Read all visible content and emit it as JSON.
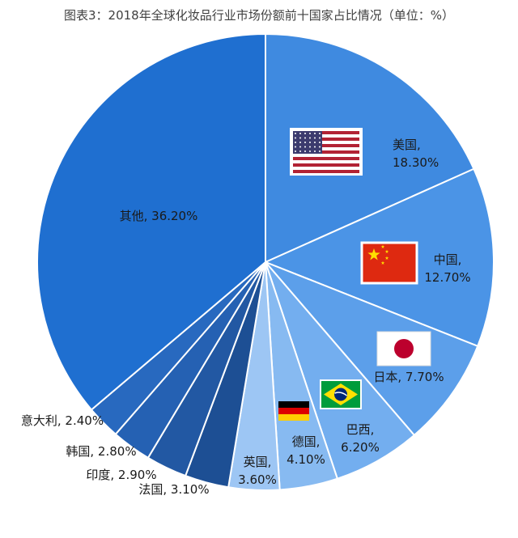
{
  "chart_data": {
    "type": "pie",
    "title": "图表3：2018年全球化妆品行业市场份额前十国家占比情况（单位：%）",
    "unit": "%",
    "start": "12 o'clock",
    "direction": "clockwise",
    "slices": [
      {
        "name": "美国",
        "value": 18.3,
        "value_label": "18.30%",
        "color": "#3f8ae0",
        "flag": "us-flag-icon"
      },
      {
        "name": "中国",
        "value": 12.7,
        "value_label": "12.70%",
        "color": "#4b94e6",
        "flag": "china-flag-icon"
      },
      {
        "name": "日本",
        "value": 7.7,
        "value_label": "7.70%",
        "color": "#5c9fea",
        "flag": "japan-flag-icon"
      },
      {
        "name": "巴西",
        "value": 6.2,
        "value_label": "6.20%",
        "color": "#73aeef",
        "flag": "brazil-flag-icon"
      },
      {
        "name": "德国",
        "value": 4.1,
        "value_label": "4.10%",
        "color": "#87baf1",
        "flag": "germany-flag-icon"
      },
      {
        "name": "英国",
        "value": 3.6,
        "value_label": "3.60%",
        "color": "#9dc6f4",
        "flag": ""
      },
      {
        "name": "法国",
        "value": 3.1,
        "value_label": "3.10%",
        "color": "#1d4f94",
        "flag": ""
      },
      {
        "name": "印度",
        "value": 2.9,
        "value_label": "2.90%",
        "color": "#2258a3",
        "flag": ""
      },
      {
        "name": "韩国",
        "value": 2.8,
        "value_label": "2.80%",
        "color": "#2561b3",
        "flag": ""
      },
      {
        "name": "意大利",
        "value": 2.4,
        "value_label": "2.40%",
        "color": "#2869bf",
        "flag": ""
      },
      {
        "name": "其他",
        "value": 36.2,
        "value_label": "36.20%",
        "color": "#1f6fd0",
        "flag": ""
      }
    ]
  }
}
